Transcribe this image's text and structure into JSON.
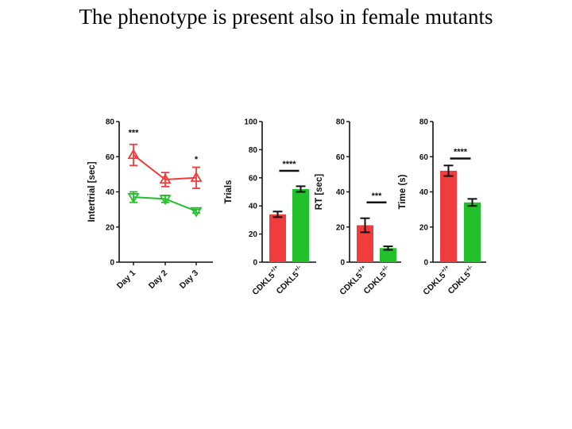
{
  "slide": {
    "title": "The phenotype is present also in female mutants"
  },
  "colors": {
    "wildtype": "#f03c3c",
    "mutant": "#22c02a",
    "sig_bar": "#111111",
    "axis": "#111111"
  },
  "chart_data": [
    {
      "type": "line",
      "ylabel": "Intertrial [sec]",
      "ylim": [
        0,
        80
      ],
      "yticks": [
        0,
        20,
        40,
        60,
        80
      ],
      "categories": [
        "Day 1",
        "Day 2",
        "Day 3"
      ],
      "series": [
        {
          "color": "#f03c3c",
          "marker": "triangle-up",
          "values": [
            61,
            47,
            48
          ],
          "errors": [
            6,
            4,
            6
          ]
        },
        {
          "color": "#22c02a",
          "marker": "triangle-down",
          "values": [
            37,
            36,
            29
          ],
          "errors": [
            3,
            2,
            1
          ]
        }
      ],
      "annotations": [
        {
          "text": "***",
          "category": "Day 1",
          "y": 72
        },
        {
          "text": "*",
          "category": "Day 3",
          "y": 57
        }
      ]
    },
    {
      "type": "bar",
      "ylabel": "Trials",
      "ylim": [
        0,
        100
      ],
      "yticks": [
        0,
        20,
        40,
        60,
        80,
        100
      ],
      "categories": [
        "CDKL5",
        "CDKL5"
      ],
      "category_superscripts": [
        "+/+",
        "+/-"
      ],
      "values": [
        34,
        52
      ],
      "errors": [
        2,
        2
      ],
      "colors": [
        "#f03c3c",
        "#22c02a"
      ],
      "significance": {
        "text": "****",
        "y": 65
      }
    },
    {
      "type": "bar",
      "ylabel": "RT [sec]",
      "ylim": [
        0,
        80
      ],
      "yticks": [
        0,
        20,
        40,
        60,
        80
      ],
      "categories": [
        "CDKL5",
        "CDKL5"
      ],
      "category_superscripts": [
        "+/+",
        "+/-"
      ],
      "values": [
        21,
        8
      ],
      "errors": [
        4,
        1
      ],
      "colors": [
        "#f03c3c",
        "#22c02a"
      ],
      "significance": {
        "text": "***",
        "y": 34
      }
    },
    {
      "type": "bar",
      "ylabel": "Time (s)",
      "ylim": [
        0,
        80
      ],
      "yticks": [
        0,
        20,
        40,
        60,
        80
      ],
      "categories": [
        "CDKL5",
        "CDKL5"
      ],
      "category_superscripts": [
        "+/+",
        "+/-"
      ],
      "values": [
        52,
        34
      ],
      "errors": [
        3,
        2
      ],
      "colors": [
        "#f03c3c",
        "#22c02a"
      ],
      "significance": {
        "text": "****",
        "y": 59
      }
    }
  ]
}
